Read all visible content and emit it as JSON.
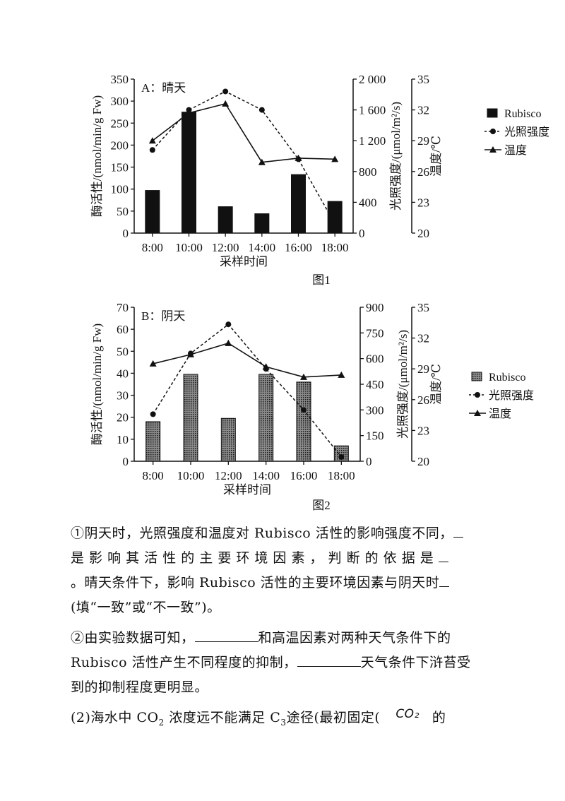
{
  "charts": [
    {
      "id": "chart1",
      "type": "bar",
      "panel_label": "A：晴天",
      "caption": "图1",
      "xlabel": "采样时间",
      "ylabel_left": "酶活性/(nmol/min/g Fw)",
      "ylabel_right1": "光照强度/(μmol/m²/s)",
      "ylabel_right2": "温度/℃",
      "categories": [
        "8:00",
        "10:00",
        "12:00",
        "14:00",
        "16:00",
        "18:00"
      ],
      "left_ticks": [
        "0",
        "50",
        "100",
        "150",
        "200",
        "250",
        "300",
        "350"
      ],
      "right1_ticks": [
        "0",
        "400",
        "800",
        "1 200",
        "1 600",
        "2 000"
      ],
      "right2_ticks": [
        "20",
        "23",
        "26",
        "29",
        "32",
        "35"
      ],
      "left_range": [
        0,
        350
      ],
      "right1_range": [
        0,
        2000
      ],
      "right2_range": [
        20,
        35
      ],
      "series": [
        {
          "name": "Rubisco",
          "kind": "bar",
          "axis": "left",
          "values": [
            97,
            275,
            60,
            44,
            133,
            72
          ]
        },
        {
          "name": "光照强度",
          "kind": "dashed-line",
          "axis": "right1",
          "values": [
            1080,
            1600,
            1840,
            1600,
            960,
            120
          ]
        },
        {
          "name": "温度",
          "kind": "solid-line",
          "axis": "right2",
          "values": [
            29.0,
            31.7,
            32.6,
            26.9,
            27.3,
            27.2
          ]
        }
      ],
      "bar_style": "solid",
      "colors": {
        "ink": "#111111"
      }
    },
    {
      "id": "chart2",
      "type": "bar",
      "panel_label": "B：阴天",
      "caption": "图2",
      "xlabel": "采样时间",
      "ylabel_left": "酶活性/(nmol/min/g Fw)",
      "ylabel_right1": "光照强度/(μmol/m²/s)",
      "ylabel_right2": "温度/℃",
      "categories": [
        "8:00",
        "10:00",
        "12:00",
        "14:00",
        "16:00",
        "18:00"
      ],
      "left_ticks": [
        "0",
        "10",
        "20",
        "30",
        "40",
        "50",
        "60",
        "70"
      ],
      "right1_ticks": [
        "0",
        "150",
        "300",
        "450",
        "600",
        "750",
        "900"
      ],
      "right2_ticks": [
        "20",
        "23",
        "26",
        "29",
        "32",
        "35"
      ],
      "left_range": [
        0,
        70
      ],
      "right1_range": [
        0,
        900
      ],
      "right2_range": [
        20,
        35
      ],
      "series": [
        {
          "name": "Rubisco",
          "kind": "bar",
          "axis": "left",
          "values": [
            18,
            39.5,
            19.5,
            39.5,
            36,
            7
          ]
        },
        {
          "name": "光照强度",
          "kind": "dashed-line",
          "axis": "right1",
          "values": [
            275,
            630,
            800,
            540,
            300,
            25
          ]
        },
        {
          "name": "温度",
          "kind": "solid-line",
          "axis": "right2",
          "values": [
            29.5,
            30.4,
            31.5,
            29.2,
            28.2,
            28.4
          ]
        }
      ],
      "bar_style": "hatched",
      "colors": {
        "ink": "#111111"
      }
    }
  ],
  "text": {
    "q1_part1": "①阴天时，光照强度和温度对 Rubisco 活性的影响强度不同，",
    "q1_part2": "是 影 响 其 活 性 的 主 要 环 境 因 素 ， 判 断 的 依 据 是 ",
    "q1_part3": "。晴天条件下，影响 Rubisco 活性的主要环境因素与阴天时",
    "q1_part4": "(填“一致”或“不一致”)。",
    "q2_part1": "②由实验数据可知，",
    "q2_part2": "和高温因素对两种天气条件下的",
    "q2_part3": "Rubisco 活性产生不同程度的抑制，",
    "q2_part4": "天气条件下浒苔受",
    "q2_part5": "到的抑制程度更明显。",
    "q3_part1": " (2)海水中  CO",
    "q3_sub1": "2",
    "q3_part2": " 浓度远不能满足  C",
    "q3_sub2": "3",
    "q3_part3": "途径(最初固定(",
    "q3_co2": "CO₂",
    "q3_part4": "的"
  }
}
